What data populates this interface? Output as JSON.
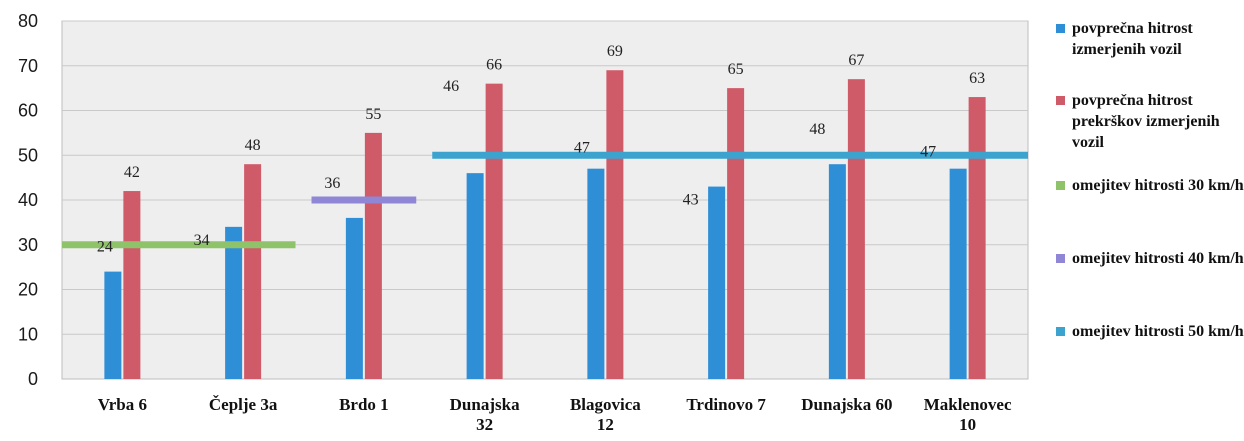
{
  "chart_data": {
    "type": "bar",
    "categories": [
      "Vrba 6",
      "Čeplje 3a",
      "Brdo 1",
      "Dunajska 32",
      "Blagovica 12",
      "Trdinovo 7",
      "Dunajska 60",
      "Maklenovec 10"
    ],
    "category_lines": [
      [
        "Vrba 6"
      ],
      [
        "Čeplje 3a"
      ],
      [
        "Brdo 1"
      ],
      [
        "Dunajska",
        "32"
      ],
      [
        "Blagovica",
        "12"
      ],
      [
        "Trdinovo 7"
      ],
      [
        "Dunajska 60"
      ],
      [
        "Maklenovec",
        "10"
      ]
    ],
    "series": [
      {
        "name": "povprečna hitrost izmerjenih vozil",
        "color": "#2e8fd6",
        "values": [
          24,
          34,
          36,
          46,
          47,
          43,
          48,
          47
        ]
      },
      {
        "name": "povprečna hitrost prekrškov izmerjenih vozil",
        "color": "#cf5a68",
        "values": [
          42,
          48,
          55,
          66,
          69,
          65,
          67,
          63
        ]
      }
    ],
    "limits": [
      {
        "name": "omejitev hitrosti 30 km/h",
        "color": "#8fc36a",
        "value": 30,
        "from_category": 0,
        "to_category": 1
      },
      {
        "name": "omejitev hitrosti 40 km/h",
        "color": "#8f86d6",
        "value": 40,
        "from_category": 2,
        "to_category": 2
      },
      {
        "name": "omejitev hitrosti 50 km/h",
        "color": "#3ca3cf",
        "value": 50,
        "from_category": 3,
        "to_category": 7
      }
    ],
    "y_ticks": [
      0,
      10,
      20,
      30,
      40,
      50,
      60,
      70,
      80
    ],
    "ylim": [
      0,
      80
    ],
    "grid": true,
    "legend_position": "right"
  },
  "legend": [
    {
      "label": "povprečna hitrost izmerjenih vozil",
      "color": "#2e8fd6"
    },
    {
      "label": "povprečna hitrost prekrškov izmerjenih vozil",
      "color": "#cf5a68"
    },
    {
      "label": "omejitev hitrosti 30 km/h",
      "color": "#8fc36a"
    },
    {
      "label": "omejitev hitrosti 40 km/h",
      "color": "#8f86d6"
    },
    {
      "label": "omejitev hitrosti 50 km/h",
      "color": "#3ca3cf"
    }
  ]
}
